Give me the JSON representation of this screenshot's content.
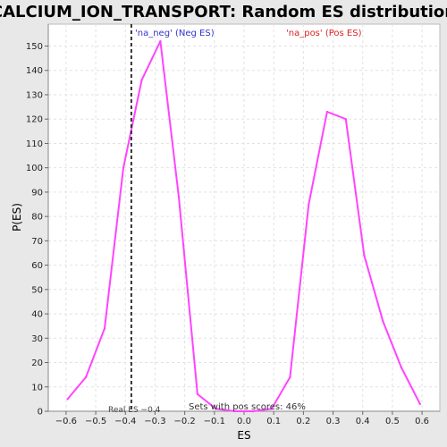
{
  "chart_data": {
    "type": "line",
    "title": "CALCIUM_ION_TRANSPORT: Random ES distribution",
    "xlabel": "ES",
    "ylabel": "P(ES)",
    "xlim": [
      -0.66,
      0.66
    ],
    "ylim": [
      0,
      159
    ],
    "xticks": [
      -0.6,
      -0.5,
      -0.4,
      -0.3,
      -0.2,
      -0.1,
      0.0,
      0.1,
      0.2,
      0.3,
      0.4,
      0.5,
      0.6
    ],
    "xtick_labels": [
      "−0.6",
      "−0.5",
      "−0.4",
      "−0.3",
      "−0.2",
      "−0.1",
      "0.0",
      "0.1",
      "0.2",
      "0.3",
      "0.4",
      "0.5",
      "0.6"
    ],
    "yticks": [
      0,
      10,
      20,
      30,
      40,
      50,
      60,
      70,
      80,
      90,
      100,
      110,
      120,
      130,
      140,
      150
    ],
    "grid": true,
    "series": [
      {
        "color": "#ff44ff",
        "x": [
          -0.595,
          -0.533,
          -0.47,
          -0.407,
          -0.345,
          -0.282,
          -0.22,
          -0.157,
          -0.095,
          -0.032,
          0.03,
          0.093,
          0.155,
          0.218,
          0.28,
          0.343,
          0.405,
          0.468,
          0.53,
          0.593
        ],
        "y": [
          5,
          14,
          34,
          100,
          136,
          152,
          88,
          7,
          1,
          0,
          0,
          1,
          14,
          85,
          123,
          120,
          64,
          37,
          18,
          3
        ]
      }
    ],
    "real_es": -0.38,
    "real_es_label": "Real ES −0.4",
    "annotations": {
      "neg_label": "'na_neg' (Neg ES)",
      "pos_label": "'na_pos' (Pos ES)",
      "pos_scores_text": "Sets with pos scores: 46%"
    },
    "colors": {
      "neg_label": "#3333cc",
      "pos_label": "#dd2222",
      "line": "#ff44ff",
      "real_es_line": "#333333"
    }
  }
}
